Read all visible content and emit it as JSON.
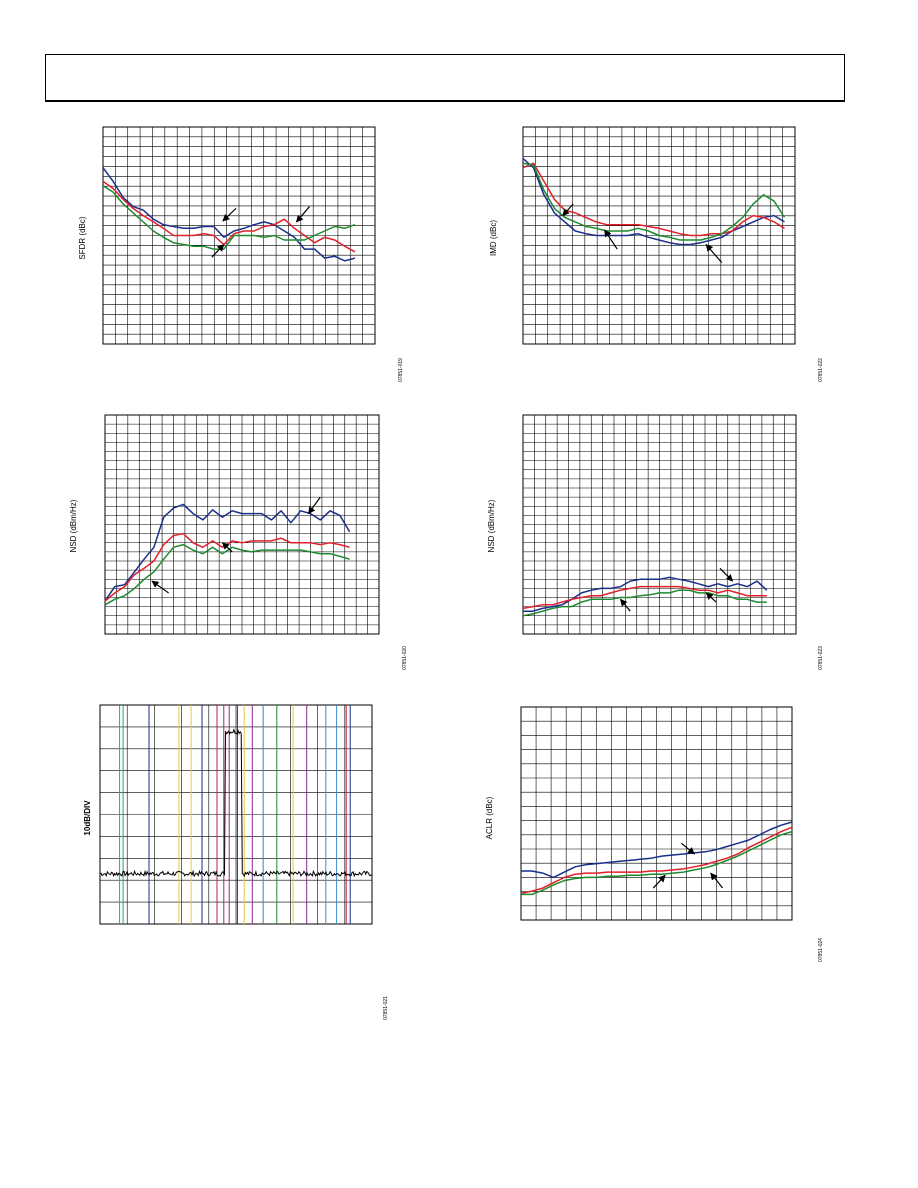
{
  "chart_data": [
    {
      "id": "sfdr",
      "type": "line",
      "ylabel": "SFDR (dBc)",
      "figure_id": "07851-019",
      "x": [
        0,
        1,
        2,
        3,
        4,
        5,
        6,
        7,
        8,
        9,
        10,
        11,
        12,
        13,
        14,
        15,
        16,
        17,
        18,
        19,
        20,
        21,
        22,
        23,
        24,
        25
      ],
      "xlim": [
        0,
        27
      ],
      "ylim": [
        0,
        24
      ],
      "colors": [
        "#1a2f8a",
        "#e0202a",
        "#1e8a2e"
      ],
      "series": [
        {
          "values": [
            19.5,
            18,
            16.2,
            15.2,
            14.8,
            13.8,
            13.2,
            13,
            12.8,
            12.8,
            13,
            13,
            11.8,
            12.5,
            12.8,
            13.2,
            13.5,
            13.2,
            12.5,
            11.8,
            10.5,
            10.5,
            9.5,
            9.7,
            9.2,
            9.5
          ]
        },
        {
          "values": [
            18,
            17.2,
            16,
            15,
            14.2,
            13.5,
            12.8,
            12,
            12,
            12,
            12.2,
            12,
            11,
            12.2,
            12.5,
            12.5,
            13,
            13.2,
            13.8,
            12.8,
            12,
            11.2,
            11.8,
            11.5,
            10.8,
            10.2
          ]
        },
        {
          "values": [
            17.5,
            16.8,
            15.5,
            14.5,
            13.5,
            12.5,
            11.8,
            11.2,
            11,
            10.8,
            10.8,
            10.5,
            10.5,
            12,
            12,
            12,
            11.8,
            12,
            11.5,
            11.5,
            11.5,
            12,
            12.5,
            13,
            12.8,
            13.2
          ]
        }
      ],
      "arrows": [
        {
          "from": [
            13.2,
            15
          ],
          "to": [
            11.9,
            13.6
          ]
        },
        {
          "from": [
            20.5,
            15.2
          ],
          "to": [
            19.2,
            13.5
          ]
        },
        {
          "from": [
            10.8,
            9.6
          ],
          "to": [
            12,
            11
          ]
        }
      ]
    },
    {
      "id": "imd",
      "type": "line",
      "ylabel": "IMD (dBc)",
      "figure_id": "07851-022",
      "x": [
        0,
        1,
        2,
        3,
        4,
        5,
        6,
        7,
        8,
        9,
        10,
        11,
        12,
        13,
        14,
        15,
        16,
        17,
        18,
        19,
        20,
        21,
        22,
        23,
        24,
        25
      ],
      "xlim": [
        0,
        26
      ],
      "ylim": [
        0,
        24
      ],
      "colors": [
        "#1a2f8a",
        "#e0202a",
        "#1e8a2e"
      ],
      "series": [
        {
          "values": [
            20.5,
            19.5,
            16.5,
            14.5,
            13.5,
            12.5,
            12.2,
            12,
            12,
            12,
            12,
            12.2,
            11.8,
            11.5,
            11.2,
            11,
            11,
            11.2,
            11.5,
            11.8,
            12.5,
            13,
            13.5,
            14,
            14.2,
            13.5
          ]
        },
        {
          "values": [
            19.5,
            20,
            18,
            16,
            14.8,
            14.5,
            14,
            13.5,
            13.2,
            13.2,
            13.2,
            13.2,
            13,
            12.8,
            12.5,
            12.2,
            12,
            12,
            12.2,
            12.2,
            12.5,
            13.5,
            14.2,
            14,
            13.5,
            12.8
          ]
        },
        {
          "values": [
            20,
            19.8,
            17,
            15,
            14,
            13.5,
            13,
            12.8,
            12.5,
            12.5,
            12.5,
            12.8,
            12.5,
            12,
            11.8,
            11.5,
            11.5,
            11.5,
            11.8,
            12.2,
            13,
            14,
            15.5,
            16.5,
            15.8,
            14
          ]
        }
      ],
      "arrows": [
        {
          "from": [
            4.8,
            15.5
          ],
          "to": [
            3.8,
            14.2
          ]
        },
        {
          "from": [
            9,
            10.5
          ],
          "to": [
            7.8,
            12.6
          ]
        },
        {
          "from": [
            19,
            9
          ],
          "to": [
            17.5,
            11
          ]
        }
      ]
    },
    {
      "id": "nsd1",
      "type": "line",
      "ylabel": "NSD (dBm/Hz)",
      "figure_id": "07851-020",
      "x": [
        0,
        1,
        2,
        3,
        4,
        5,
        6,
        7,
        8,
        9,
        10,
        11,
        12,
        13,
        14,
        15,
        16,
        17,
        18,
        19,
        20,
        21,
        22,
        23,
        24,
        25
      ],
      "xlim": [
        0,
        28
      ],
      "ylim": [
        0,
        24
      ],
      "colors": [
        "#1a2f8a",
        "#e0202a",
        "#1e8a2e"
      ],
      "series": [
        {
          "values": [
            3.6,
            5.2,
            5.4,
            6.8,
            8.2,
            9.5,
            12.8,
            13.8,
            14.2,
            13.2,
            12.5,
            13.6,
            12.8,
            13.5,
            13.2,
            13.2,
            13.2,
            12.5,
            13.5,
            12.2,
            13.5,
            13.2,
            12.5,
            13.5,
            13,
            11.2
          ]
        },
        {
          "values": [
            3.6,
            4.5,
            5.2,
            6.5,
            7.2,
            8,
            9.8,
            10.8,
            11,
            10,
            9.5,
            10.2,
            9.5,
            10.2,
            10,
            10.2,
            10.2,
            10.2,
            10.5,
            10,
            10,
            10,
            9.8,
            10,
            9.8,
            9.5
          ]
        },
        {
          "values": [
            3.2,
            3.8,
            4.2,
            5,
            6,
            6.8,
            8.2,
            9.5,
            9.8,
            9.2,
            8.8,
            9.5,
            8.8,
            9.5,
            9.2,
            9,
            9.2,
            9.2,
            9.2,
            9.2,
            9.2,
            9,
            8.8,
            8.8,
            8.5,
            8.2
          ]
        }
      ],
      "arrows": [
        {
          "from": [
            22,
            15
          ],
          "to": [
            20.8,
            13.2
          ]
        },
        {
          "from": [
            13,
            9
          ],
          "to": [
            12,
            10
          ]
        },
        {
          "from": [
            6.5,
            4.5
          ],
          "to": [
            4.8,
            5.8
          ]
        }
      ]
    },
    {
      "id": "nsd2",
      "type": "line",
      "ylabel": "NSD (dBm/Hz)",
      "figure_id": "07851-023",
      "x": [
        0,
        1,
        2,
        3,
        4,
        5,
        6,
        7,
        8,
        9,
        10,
        11,
        12,
        13,
        14,
        15,
        16,
        17,
        18,
        19,
        20,
        21,
        22,
        23,
        24,
        25
      ],
      "xlim": [
        0,
        28
      ],
      "ylim": [
        0,
        24
      ],
      "colors": [
        "#1a2f8a",
        "#e0202a",
        "#1e8a2e"
      ],
      "series": [
        {
          "values": [
            2.5,
            2.5,
            2.8,
            3,
            3.2,
            3.8,
            4.5,
            4.8,
            5,
            5,
            5.2,
            5.8,
            6,
            6,
            6,
            6.2,
            6,
            5.8,
            5.5,
            5.2,
            5.5,
            5.2,
            5.5,
            5.2,
            5.8,
            4.8
          ]
        },
        {
          "values": [
            2.8,
            3,
            3.2,
            3.2,
            3.5,
            3.8,
            4,
            4.2,
            4.2,
            4.5,
            4.8,
            5,
            5.2,
            5.2,
            5.2,
            5.2,
            5.2,
            5,
            4.8,
            4.8,
            4.5,
            4.8,
            4.5,
            4.2,
            4.2,
            4.2
          ]
        },
        {
          "values": [
            2,
            2.2,
            2.5,
            2.8,
            3,
            3,
            3.5,
            3.8,
            3.8,
            3.8,
            4,
            4,
            4.2,
            4.3,
            4.5,
            4.5,
            4.8,
            4.8,
            4.5,
            4.5,
            4.2,
            4.2,
            3.8,
            3.8,
            3.5,
            3.5
          ]
        }
      ],
      "arrows": [
        {
          "from": [
            20.2,
            7.2
          ],
          "to": [
            21.5,
            5.8
          ]
        },
        {
          "from": [
            11,
            2.5
          ],
          "to": [
            10,
            3.8
          ]
        },
        {
          "from": [
            19.8,
            3.5
          ],
          "to": [
            18.8,
            4.5
          ]
        }
      ]
    },
    {
      "id": "spectrum",
      "type": "line",
      "ylabel": "10dB/DIV",
      "figure_id": "07851-021",
      "xlim": [
        0,
        10
      ],
      "ylim": [
        0,
        10
      ],
      "color": "#000000",
      "noise_floor": 2.3,
      "passband": {
        "start": 4.6,
        "end": 5.2,
        "level": 8.8
      },
      "markers": [
        {
          "x": 0.72,
          "color": "#3b8ec9"
        },
        {
          "x": 0.85,
          "color": "#2aa05a"
        },
        {
          "x": 1.8,
          "color": "#1a2f8a"
        },
        {
          "x": 2.9,
          "color": "#e8c84a"
        },
        {
          "x": 3.35,
          "color": "#e8c84a"
        },
        {
          "x": 3.75,
          "color": "#1a2f8a"
        },
        {
          "x": 4.3,
          "color": "#c02040"
        },
        {
          "x": 4.55,
          "color": "#c02040"
        },
        {
          "x": 4.75,
          "color": "#8a2a8a"
        },
        {
          "x": 5.05,
          "color": "#1a2f8a"
        },
        {
          "x": 5.3,
          "color": "#e8c84a"
        },
        {
          "x": 5.6,
          "color": "#8a2a8a"
        },
        {
          "x": 6,
          "color": "#3b8ec9"
        },
        {
          "x": 6.5,
          "color": "#1e8a2e"
        },
        {
          "x": 7.1,
          "color": "#e8c84a"
        },
        {
          "x": 7.6,
          "color": "#8a2a8a"
        },
        {
          "x": 8.3,
          "color": "#3b8ec9"
        },
        {
          "x": 8.7,
          "color": "#3b8ec9"
        },
        {
          "x": 9.05,
          "color": "#c02040"
        },
        {
          "x": 9.2,
          "color": "#1a2f8a"
        }
      ]
    },
    {
      "id": "aclr",
      "type": "line",
      "ylabel": "ACLR (dBc)",
      "figure_id": "07851-024",
      "x": [
        0,
        1,
        2,
        3,
        4,
        5,
        6,
        7,
        8,
        9,
        10,
        11,
        12,
        13,
        14,
        15,
        16,
        17,
        18,
        19,
        20,
        21,
        22,
        23,
        24,
        25
      ],
      "xlim": [
        0,
        25
      ],
      "ylim": [
        0,
        20
      ],
      "colors": [
        "#1a2f8a",
        "#e0202a",
        "#1e8a2e"
      ],
      "series": [
        {
          "values": [
            4.6,
            4.6,
            4.4,
            4,
            4.5,
            5,
            5.2,
            5.3,
            5.4,
            5.5,
            5.6,
            5.7,
            5.8,
            6,
            6.1,
            6.2,
            6.3,
            6.4,
            6.6,
            6.9,
            7.2,
            7.5,
            8,
            8.5,
            8.9,
            9.2
          ]
        },
        {
          "values": [
            2.5,
            2.7,
            3,
            3.5,
            4,
            4.3,
            4.4,
            4.4,
            4.5,
            4.5,
            4.5,
            4.5,
            4.6,
            4.6,
            4.7,
            4.8,
            5,
            5.2,
            5.5,
            5.8,
            6.2,
            6.8,
            7.3,
            7.8,
            8.3,
            8.7
          ]
        },
        {
          "values": [
            2.4,
            2.4,
            2.8,
            3.3,
            3.7,
            3.9,
            4,
            4,
            4.1,
            4.1,
            4.2,
            4.2,
            4.3,
            4.3,
            4.4,
            4.5,
            4.7,
            4.9,
            5.2,
            5.6,
            6,
            6.5,
            7,
            7.5,
            8,
            8.3
          ]
        }
      ],
      "arrows": [
        {
          "from": [
            14.8,
            7.2
          ],
          "to": [
            16,
            6.2
          ]
        },
        {
          "from": [
            12.2,
            3
          ],
          "to": [
            13.3,
            4.2
          ]
        },
        {
          "from": [
            18.6,
            3
          ],
          "to": [
            17.5,
            4.4
          ]
        }
      ]
    }
  ]
}
